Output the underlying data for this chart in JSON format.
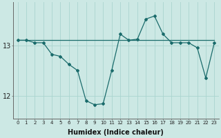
{
  "xlabel": "Humidex (Indice chaleur)",
  "bg_color": "#cce8e4",
  "line_color": "#1a6b6b",
  "grid_color": "#aad4cf",
  "x_values": [
    0,
    1,
    2,
    3,
    4,
    5,
    6,
    7,
    8,
    9,
    10,
    11,
    12,
    13,
    14,
    15,
    16,
    17,
    18,
    19,
    20,
    21,
    22,
    23
  ],
  "line1_y": [
    13.1,
    13.1,
    13.1,
    13.1,
    13.1,
    13.1,
    13.1,
    13.1,
    13.1,
    13.1,
    13.1,
    13.1,
    13.1,
    13.1,
    13.1,
    13.1,
    13.1,
    13.1,
    13.1,
    13.1,
    13.1,
    13.1,
    13.1,
    13.1
  ],
  "line2_y": [
    13.1,
    13.1,
    13.05,
    13.05,
    12.82,
    12.78,
    12.62,
    12.5,
    11.9,
    11.82,
    11.84,
    12.5,
    13.22,
    13.1,
    13.12,
    13.52,
    13.58,
    13.22,
    13.05,
    13.05,
    13.05,
    12.95,
    12.35,
    13.05
  ],
  "yticks": [
    12,
    13
  ],
  "ylim": [
    11.55,
    13.85
  ],
  "xlim": [
    -0.5,
    23.5
  ]
}
